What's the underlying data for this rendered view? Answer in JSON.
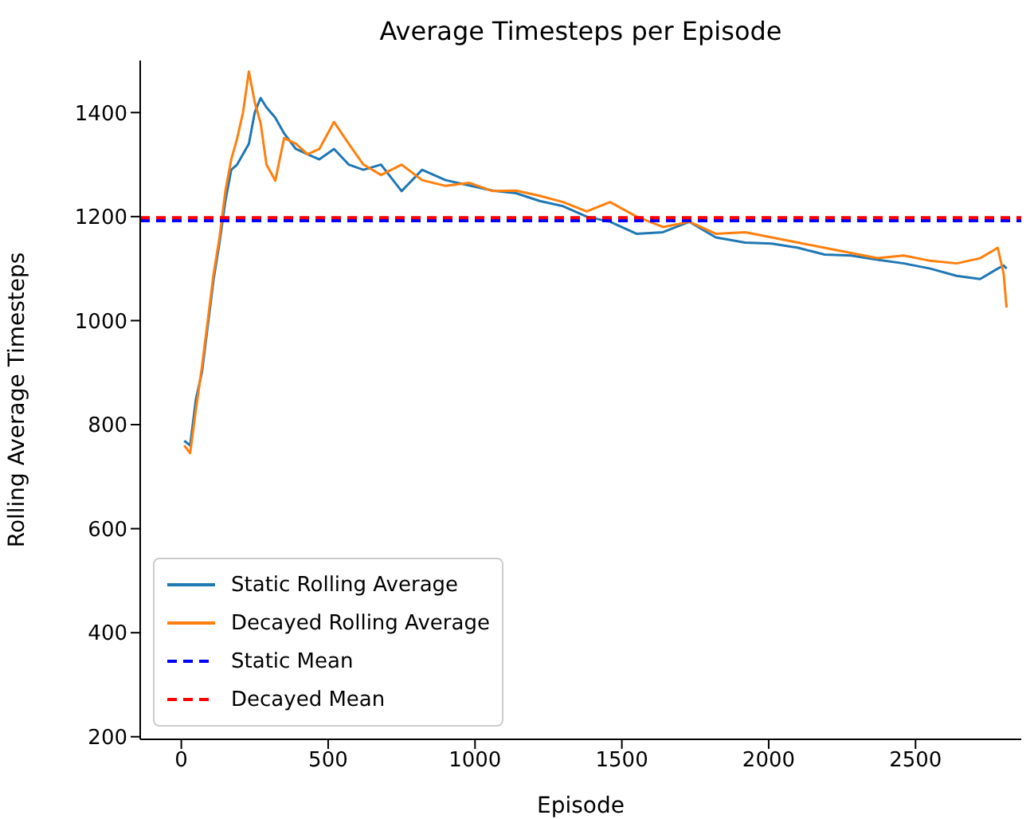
{
  "chart_data": {
    "type": "line",
    "title": "Average Timesteps per Episode",
    "xlabel": "Episode",
    "ylabel": "Rolling Average Timesteps",
    "x": [
      10,
      30,
      50,
      70,
      90,
      110,
      130,
      150,
      170,
      190,
      210,
      230,
      250,
      270,
      290,
      320,
      350,
      390,
      430,
      470,
      520,
      570,
      620,
      680,
      750,
      820,
      900,
      980,
      1060,
      1140,
      1220,
      1300,
      1380,
      1460,
      1550,
      1640,
      1730,
      1820,
      1920,
      2010,
      2100,
      2190,
      2280,
      2370,
      2460,
      2550,
      2640,
      2720,
      2780,
      2800,
      2810
    ],
    "series": [
      {
        "name": "Static Rolling Average",
        "color": "#1f77b4",
        "values": [
          769,
          760,
          850,
          900,
          990,
          1080,
          1150,
          1230,
          1290,
          1300,
          1320,
          1340,
          1400,
          1428,
          1410,
          1390,
          1360,
          1330,
          1320,
          1310,
          1330,
          1300,
          1290,
          1300,
          1249,
          1290,
          1270,
          1260,
          1250,
          1245,
          1230,
          1220,
          1200,
          1190,
          1167,
          1170,
          1190,
          1160,
          1150,
          1148,
          1140,
          1127,
          1125,
          1117,
          1110,
          1100,
          1086,
          1080,
          1100,
          1106,
          1100
        ]
      },
      {
        "name": "Decayed Rolling Average",
        "color": "#ff7f0e",
        "values": [
          760,
          745,
          830,
          910,
          1000,
          1090,
          1160,
          1249,
          1310,
          1350,
          1400,
          1479,
          1420,
          1380,
          1300,
          1269,
          1351,
          1340,
          1320,
          1330,
          1382,
          1340,
          1300,
          1280,
          1300,
          1270,
          1259,
          1265,
          1249,
          1250,
          1240,
          1228,
          1210,
          1228,
          1200,
          1180,
          1190,
          1167,
          1170,
          1160,
          1150,
          1140,
          1130,
          1120,
          1125,
          1115,
          1110,
          1120,
          1140,
          1090,
          1025
        ]
      }
    ],
    "xlim": [
      -140,
      2860
    ],
    "xticks": [
      0,
      500,
      1000,
      1500,
      2000,
      2500
    ],
    "ylim": [
      195,
      1500
    ],
    "yticks": [
      200,
      400,
      600,
      800,
      1000,
      1200,
      1400
    ],
    "ref_lines": [
      {
        "axis": "y",
        "value": 1192,
        "label": "Static Mean",
        "color": "#0000ff",
        "line_style": "dashed"
      },
      {
        "axis": "y",
        "value": 1198,
        "label": "Decayed Mean",
        "color": "#ff0000",
        "line_style": "dashed"
      }
    ],
    "legend": "bottom left",
    "grid": false,
    "marker": "none",
    "line_style": "solid"
  }
}
